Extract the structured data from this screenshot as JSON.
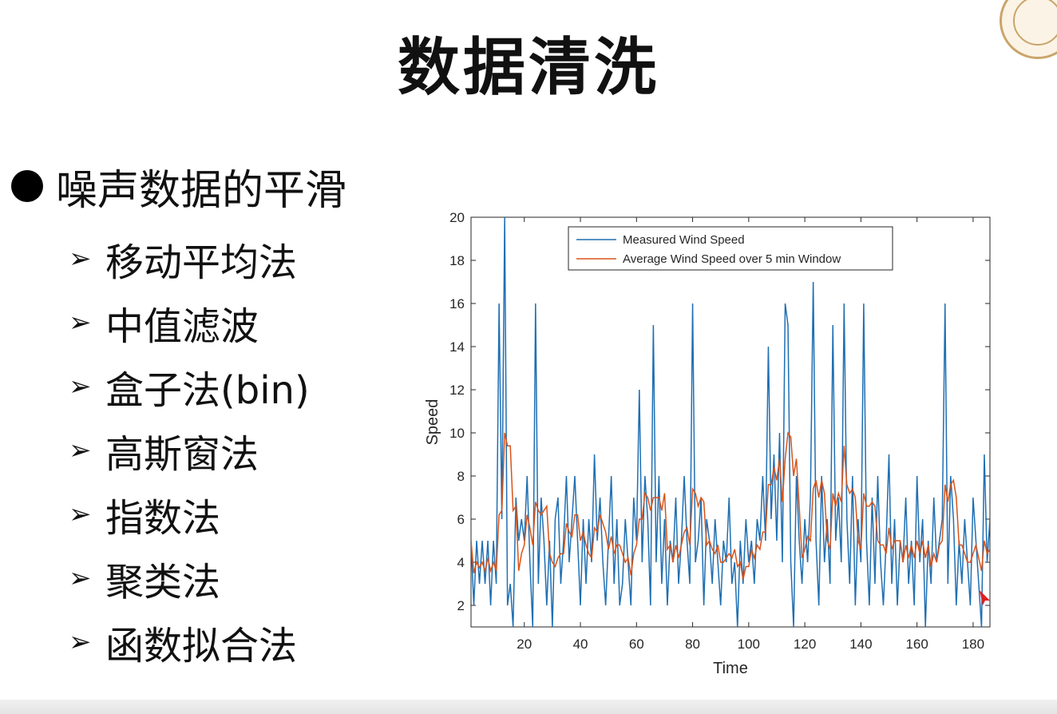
{
  "slide": {
    "title": "数据清洗",
    "bullet": "噪声数据的平滑",
    "subitems": [
      {
        "label": "移动平均法"
      },
      {
        "label": "中值滤波"
      },
      {
        "label": "盒子法(bin)"
      },
      {
        "label": "高斯窗法"
      },
      {
        "label": "指数法"
      },
      {
        "label": "聚类法"
      },
      {
        "label": "函数拟合法"
      }
    ],
    "arrow_glyph": "➢"
  },
  "chart_data": {
    "type": "line",
    "xlabel": "Time",
    "ylabel": "Speed",
    "xlim": [
      1,
      186
    ],
    "ylim": [
      1,
      20
    ],
    "xticks": [
      20,
      40,
      60,
      80,
      100,
      120,
      140,
      160,
      180
    ],
    "yticks": [
      2,
      4,
      6,
      8,
      10,
      12,
      14,
      16,
      18,
      20
    ],
    "grid": false,
    "legend_position": "top-center",
    "series": [
      {
        "name": "Measured Wind Speed",
        "color": "#1f6fb2",
        "x": [
          1,
          2,
          3,
          4,
          5,
          6,
          7,
          8,
          9,
          10,
          11,
          12,
          13,
          14,
          15,
          16,
          17,
          18,
          19,
          20,
          21,
          22,
          23,
          24,
          25,
          26,
          27,
          28,
          29,
          30,
          31,
          32,
          33,
          34,
          35,
          36,
          37,
          38,
          39,
          40,
          41,
          42,
          43,
          44,
          45,
          46,
          47,
          48,
          49,
          50,
          51,
          52,
          53,
          54,
          55,
          56,
          57,
          58,
          59,
          60,
          61,
          62,
          63,
          64,
          65,
          66,
          67,
          68,
          69,
          70,
          71,
          72,
          73,
          74,
          75,
          76,
          77,
          78,
          79,
          80,
          81,
          82,
          83,
          84,
          85,
          86,
          87,
          88,
          89,
          90,
          91,
          92,
          93,
          94,
          95,
          96,
          97,
          98,
          99,
          100,
          101,
          102,
          103,
          104,
          105,
          106,
          107,
          108,
          109,
          110,
          111,
          112,
          113,
          114,
          115,
          116,
          117,
          118,
          119,
          120,
          121,
          122,
          123,
          124,
          125,
          126,
          127,
          128,
          129,
          130,
          131,
          132,
          133,
          134,
          135,
          136,
          137,
          138,
          139,
          140,
          141,
          142,
          143,
          144,
          145,
          146,
          147,
          148,
          149,
          150,
          151,
          152,
          153,
          154,
          155,
          156,
          157,
          158,
          159,
          160,
          161,
          162,
          163,
          164,
          165,
          166,
          167,
          168,
          169,
          170,
          171,
          172,
          173,
          174,
          175,
          176,
          177,
          178,
          179,
          180,
          181,
          182,
          183,
          184,
          185,
          186
        ],
        "y": [
          5,
          2,
          5,
          3,
          5,
          3,
          5,
          2,
          5,
          3,
          16,
          6,
          20,
          2,
          3,
          1,
          7,
          5,
          6,
          5,
          8,
          4,
          1,
          16,
          3,
          7,
          5,
          2,
          5,
          1,
          6,
          7,
          3,
          5,
          8,
          4,
          6,
          8,
          5,
          2,
          6,
          3,
          6,
          4,
          9,
          5,
          7,
          4,
          2,
          5,
          8,
          3,
          6,
          2,
          3,
          6,
          4,
          2,
          7,
          5,
          12,
          4,
          8,
          6,
          2,
          15,
          4,
          8,
          3,
          6,
          2,
          5,
          4,
          7,
          3,
          5,
          8,
          5,
          3,
          16,
          4,
          5,
          7,
          2,
          6,
          5,
          3,
          6,
          4,
          2,
          5,
          4,
          7,
          3,
          4,
          1,
          5,
          3,
          6,
          4,
          5,
          3,
          6,
          5,
          8,
          5,
          14,
          6,
          9,
          5,
          10,
          4,
          16,
          15,
          4,
          1,
          8,
          5,
          3,
          6,
          4,
          7,
          17,
          5,
          2,
          8,
          4,
          6,
          3,
          15,
          5,
          7,
          4,
          16,
          6,
          3,
          8,
          2,
          6,
          4,
          16,
          5,
          2,
          7,
          3,
          8,
          4,
          2,
          5,
          9,
          3,
          6,
          2,
          5,
          4,
          7,
          3,
          5,
          2,
          8,
          4,
          6,
          1,
          5,
          3,
          7,
          4,
          5,
          6,
          16,
          3,
          8,
          6,
          2,
          5,
          3,
          6,
          4,
          2,
          7,
          5,
          3,
          1,
          9,
          4,
          6
        ]
      },
      {
        "name": "Average Wind Speed over 5 min Window",
        "color": "#d95319"
      }
    ]
  }
}
